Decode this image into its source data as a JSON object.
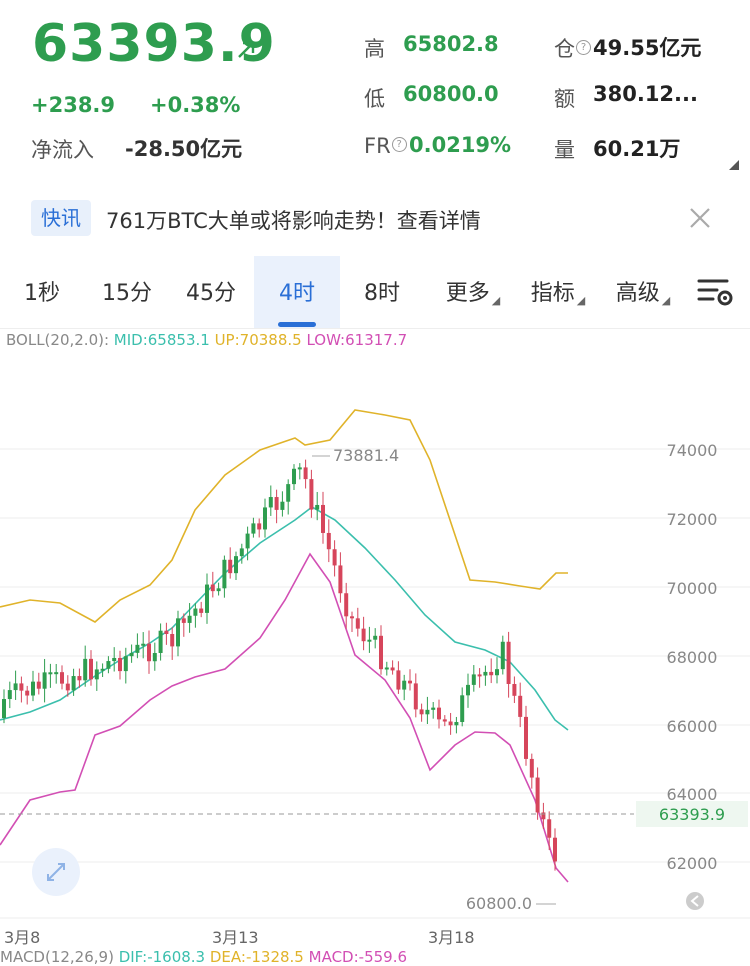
{
  "header": {
    "last_price": "63393.9",
    "change": "+238.9",
    "change_pct": "+0.38%",
    "net_inflow_label": "净流入",
    "net_inflow_value": "-28.50亿元",
    "high_label": "高",
    "high_value": "65802.8",
    "low_label": "低",
    "low_value": "60800.0",
    "fr_label": "FR",
    "fr_value": "0.0219%",
    "oi_label": "仓",
    "oi_value": "49.55亿元",
    "amount_label": "额",
    "amount_value": "380.12...",
    "volume_label": "量",
    "volume_value": "60.21万"
  },
  "flash": {
    "tag": "快讯",
    "text": "761万BTC大单或将影响走势！查看详情"
  },
  "tabs": [
    {
      "label": "1秒"
    },
    {
      "label": "15分"
    },
    {
      "label": "45分"
    },
    {
      "label": "4时",
      "active": true
    },
    {
      "label": "8时"
    },
    {
      "label": "更多"
    },
    {
      "label": "指标"
    },
    {
      "label": "高级"
    }
  ],
  "boll": {
    "prefix": "BOLL(20,2.0):",
    "mid": "MID:65853.1",
    "up": "UP:70388.5",
    "low": "LOW:61317.7"
  },
  "chart": {
    "y_ticks": [
      "74000",
      "72000",
      "70000",
      "68000",
      "66000",
      "64000",
      "62000"
    ],
    "current_price_tag": "63393.9",
    "high_marker": "73881.4",
    "low_marker": "60800.0",
    "x_ticks": [
      "3月8",
      "3月13",
      "3月18"
    ]
  },
  "macd": {
    "prefix": "MACD(12,26,9)",
    "dif": "DIF:-1608.3",
    "dea": "DEA:-1328.5",
    "macd": "MACD:-559.6"
  },
  "colors": {
    "up": "#2e9d4f",
    "down": "#d6455b",
    "mid_line": "#3bbfad",
    "upper_band": "#e0b32a",
    "lower_band": "#d24fb4",
    "accent": "#2a6fd6"
  }
}
